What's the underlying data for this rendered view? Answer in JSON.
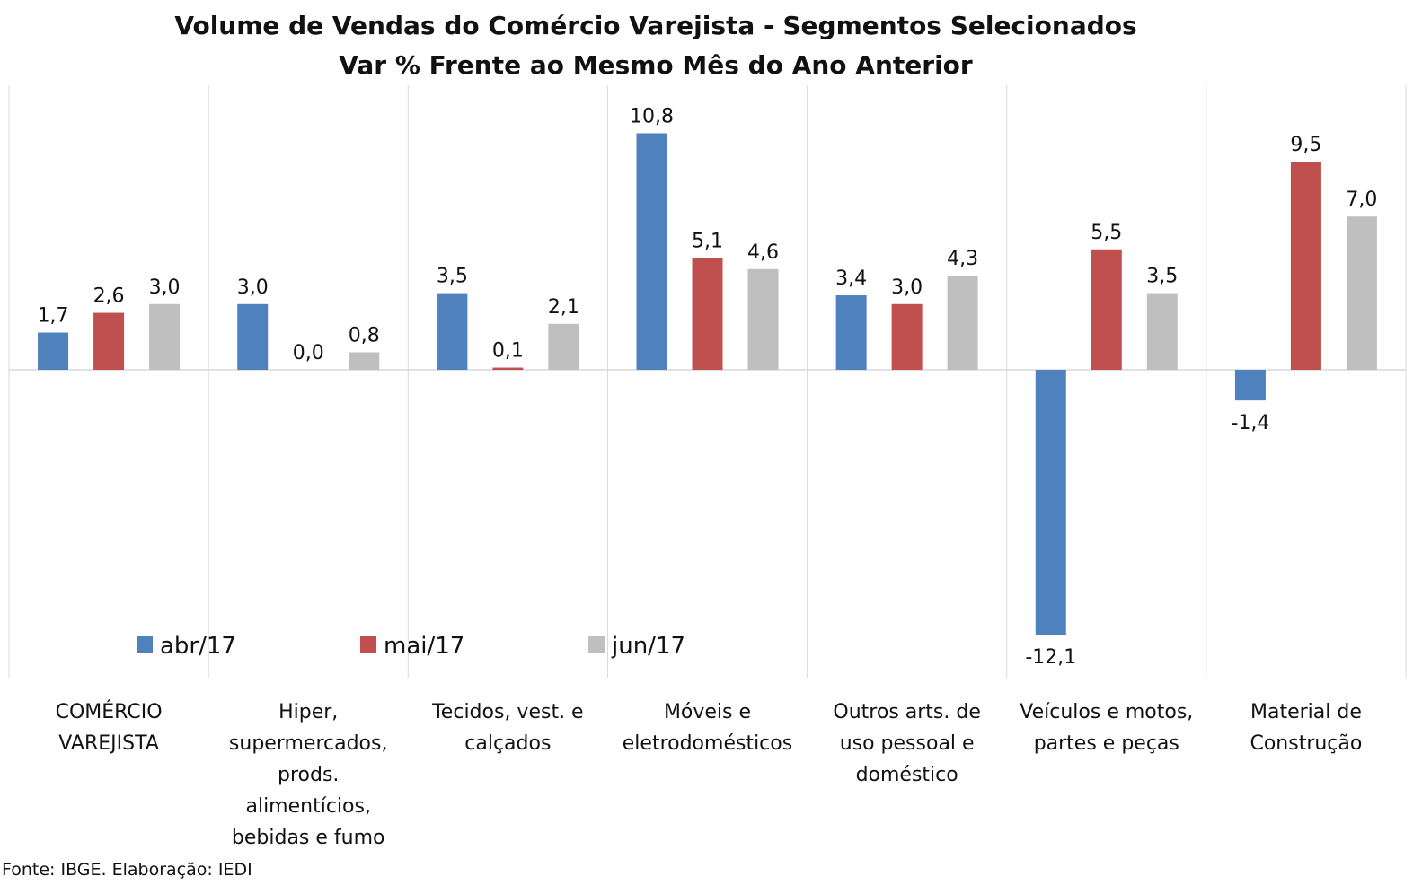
{
  "chart_data": {
    "type": "bar",
    "title": "Volume de Vendas do Comércio Varejista - Segmentos Selecionados",
    "subtitle": "Var % Frente ao Mesmo Mês do Ano Anterior",
    "categories": [
      [
        "COMÉRCIO",
        "VAREJISTA"
      ],
      [
        "Hiper,",
        "supermercados,",
        "prods.",
        "alimentícios,",
        "bebidas e fumo"
      ],
      [
        "Tecidos, vest. e",
        "calçados"
      ],
      [
        "Móveis e",
        "eletrodomésticos"
      ],
      [
        "Outros arts. de",
        "uso pessoal e",
        "doméstico"
      ],
      [
        "Veículos e motos,",
        "partes e peças"
      ],
      [
        "Material de",
        "Construção"
      ]
    ],
    "series": [
      {
        "name": "abr/17",
        "color": "#4f81bd",
        "values": [
          1.7,
          3.0,
          3.5,
          10.8,
          3.4,
          -12.1,
          -1.4
        ],
        "labels": [
          "1,7",
          "3,0",
          "3,5",
          "10,8",
          "3,4",
          "-12,1",
          "-1,4"
        ]
      },
      {
        "name": "mai/17",
        "color": "#c0504d",
        "values": [
          2.6,
          0.0,
          0.1,
          5.1,
          3.0,
          5.5,
          9.5
        ],
        "labels": [
          "2,6",
          "0,0",
          "0,1",
          "5,1",
          "3,0",
          "5,5",
          "9,5"
        ]
      },
      {
        "name": "jun/17",
        "color": "#bfbfbf",
        "values": [
          3.0,
          0.8,
          2.1,
          4.6,
          4.3,
          3.5,
          7.0
        ],
        "labels": [
          "3,0",
          "0,8",
          "2,1",
          "4,6",
          "4,3",
          "3,5",
          "7,0"
        ]
      }
    ],
    "ylim": [
      -14,
      13
    ],
    "grid": "vertical-category-separators",
    "legend": "bottom-left",
    "source": "Fonte: IBGE. Elaboração: IEDI"
  }
}
